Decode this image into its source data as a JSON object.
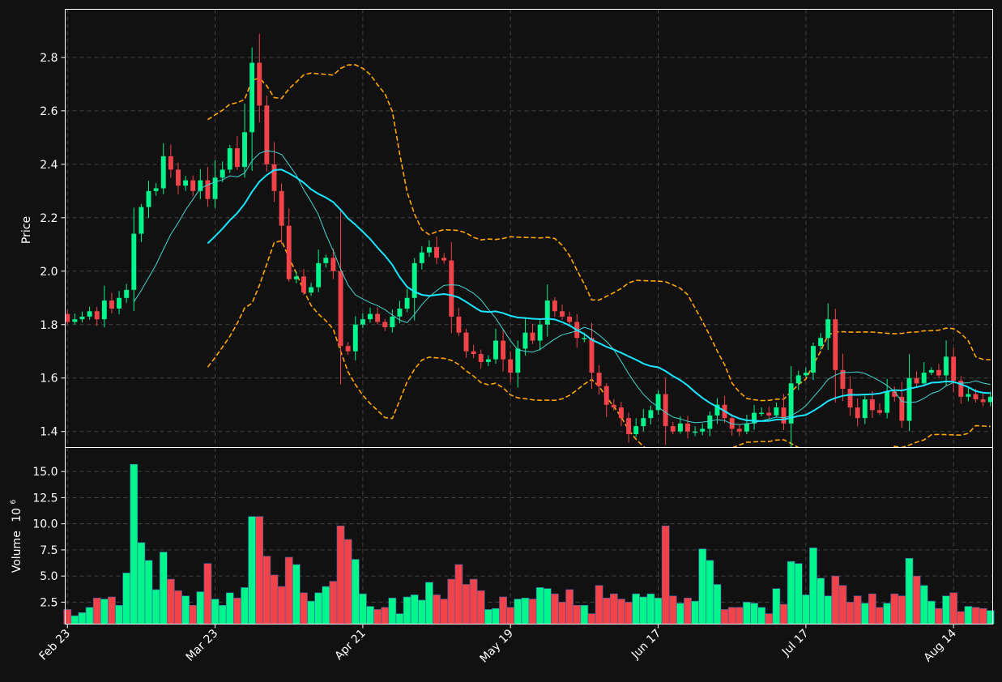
{
  "chart_data": {
    "type": "candlestick",
    "theme": {
      "background": "#111111",
      "up_color": "#00f58c",
      "down_color": "#f2434a",
      "ma_fast_color": "#3fd6d2",
      "ma_slow_color": "#19e6ff",
      "band_color": "#ffa500",
      "grid_color": "#444444",
      "axis_color": "#ffffff"
    },
    "price_panel": {
      "ylabel": "Price",
      "ylim": [
        1.34,
        2.98
      ],
      "yticks": [
        1.4,
        1.6,
        1.8,
        2.0,
        2.2,
        2.4,
        2.6,
        2.8
      ],
      "ytick_labels": [
        "1.4",
        "1.6",
        "1.8",
        "2.0",
        "2.2",
        "2.4",
        "2.6",
        "2.8"
      ],
      "grid": true
    },
    "volume_panel": {
      "ylabel": "Volume",
      "ylabel_exponent": "10",
      "ylabel_exponent_power": "6",
      "ylim": [
        0.4,
        17.3
      ],
      "yticks": [
        2.5,
        5.0,
        7.5,
        10.0,
        12.5,
        15.0
      ],
      "ytick_labels": [
        "2.5",
        "5.0",
        "7.5",
        "10.0",
        "12.5",
        "15.0"
      ],
      "grid": true
    },
    "x_axis": {
      "n_bars": 126,
      "xlim": [
        -0.3,
        125.3
      ],
      "ticks": [
        0,
        20,
        40,
        60,
        80,
        100,
        120
      ],
      "tick_labels": [
        "Feb 23",
        "Mar 23",
        "Apr 21",
        "May 19",
        "Jun 17",
        "Jul 17",
        "Aug 14"
      ]
    },
    "close": [
      1.81,
      1.82,
      1.83,
      1.85,
      1.82,
      1.89,
      1.86,
      1.9,
      1.93,
      2.14,
      2.24,
      2.3,
      2.31,
      2.43,
      2.38,
      2.32,
      2.34,
      2.3,
      2.34,
      2.27,
      2.35,
      2.38,
      2.46,
      2.39,
      2.52,
      2.78,
      2.62,
      2.4,
      2.3,
      2.17,
      1.97,
      1.98,
      1.92,
      1.94,
      2.03,
      2.05,
      2.0,
      1.72,
      1.7,
      1.8,
      1.82,
      1.84,
      1.81,
      1.79,
      1.83,
      1.86,
      1.9,
      2.03,
      2.07,
      2.09,
      2.05,
      2.04,
      1.83,
      1.77,
      1.7,
      1.69,
      1.66,
      1.67,
      1.74,
      1.67,
      1.62,
      1.71,
      1.77,
      1.74,
      1.8,
      1.89,
      1.85,
      1.83,
      1.81,
      1.75,
      1.75,
      1.62,
      1.57,
      1.5,
      1.49,
      1.45,
      1.39,
      1.42,
      1.45,
      1.48,
      1.54,
      1.42,
      1.4,
      1.43,
      1.4,
      1.4,
      1.41,
      1.46,
      1.5,
      1.45,
      1.41,
      1.4,
      1.43,
      1.47,
      1.47,
      1.46,
      1.49,
      1.43,
      1.58,
      1.61,
      1.62,
      1.72,
      1.75,
      1.82,
      1.63,
      1.56,
      1.49,
      1.45,
      1.52,
      1.48,
      1.47,
      1.55,
      1.53,
      1.44,
      1.6,
      1.58,
      1.62,
      1.63,
      1.61,
      1.68,
      1.59,
      1.53,
      1.54,
      1.52,
      1.51,
      1.53
    ],
    "volume": [
      1.8,
      1.2,
      1.5,
      2.0,
      2.9,
      2.8,
      3.0,
      2.2,
      5.3,
      15.7,
      8.2,
      6.5,
      3.7,
      7.3,
      4.7,
      3.6,
      3.1,
      2.2,
      3.5,
      6.2,
      2.8,
      2.2,
      3.4,
      2.9,
      3.9,
      10.7,
      10.7,
      6.9,
      5.1,
      4.0,
      6.8,
      6.1,
      3.4,
      2.6,
      3.4,
      4.0,
      4.5,
      9.8,
      8.5,
      6.6,
      3.3,
      2.1,
      1.8,
      2.0,
      2.9,
      1.4,
      3.0,
      3.2,
      2.7,
      4.4,
      3.2,
      2.8,
      4.7,
      6.1,
      4.2,
      4.7,
      3.6,
      1.8,
      1.9,
      3.0,
      2.0,
      2.8,
      2.9,
      2.8,
      3.9,
      3.8,
      3.3,
      2.5,
      3.7,
      2.2,
      2.2,
      1.4,
      4.1,
      2.9,
      3.3,
      2.8,
      2.5,
      3.3,
      3.0,
      3.3,
      2.9,
      9.8,
      3.1,
      2.4,
      2.9,
      2.6,
      7.6,
      6.5,
      4.2,
      1.8,
      2.0,
      2.0,
      2.5,
      2.4,
      2.0,
      1.4,
      3.8,
      2.3,
      6.4,
      6.2,
      3.2,
      7.7,
      4.8,
      3.1,
      5.0,
      4.1,
      2.5,
      3.1,
      2.4,
      3.3,
      2.0,
      2.4,
      3.3,
      3.1,
      6.7,
      5.0,
      4.1,
      2.6,
      1.9,
      3.1,
      3.4,
      1.6,
      2.1,
      2.0,
      1.9,
      1.7
    ]
  }
}
